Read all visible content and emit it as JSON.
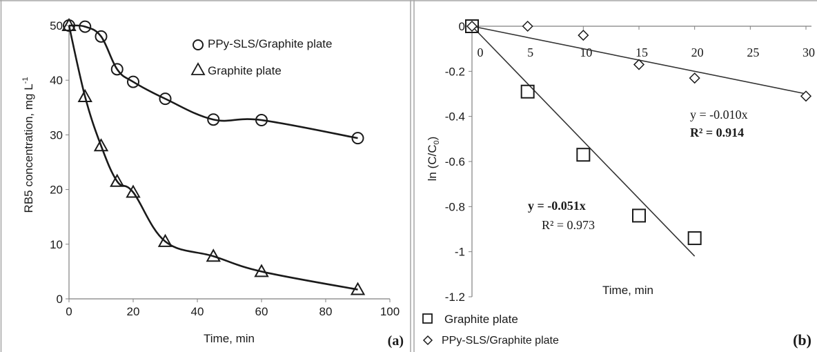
{
  "chart_data": [
    {
      "type": "line",
      "panel_label": "(a)",
      "xlabel": "Time, min",
      "ylabel": "RB5 concentration, mg L",
      "ylabel_superscript": "-1",
      "xlim": [
        0,
        100
      ],
      "ylim": [
        0,
        50
      ],
      "x_ticks": [
        "0",
        "20",
        "40",
        "60",
        "80",
        "100"
      ],
      "y_ticks": [
        "0",
        "10",
        "20",
        "30",
        "40",
        "50"
      ],
      "grid": false,
      "legend_position": "top-right",
      "series": [
        {
          "name": "PPy-SLS/Graphite plate",
          "marker": "circle",
          "x": [
            0,
            5,
            10,
            15,
            20,
            30,
            45,
            60,
            90
          ],
          "y": [
            50,
            49.8,
            48,
            42,
            39.7,
            36.6,
            32.8,
            32.7,
            29.4
          ]
        },
        {
          "name": "Graphite plate",
          "marker": "triangle",
          "x": [
            0,
            5,
            10,
            15,
            20,
            30,
            45,
            60,
            90
          ],
          "y": [
            50,
            37,
            28,
            21.5,
            19.5,
            10.5,
            7.8,
            5,
            1.7
          ]
        }
      ]
    },
    {
      "type": "scatter",
      "panel_label": "(b)",
      "xlabel": "Time, min",
      "ylabel": "ln (C/C",
      "ylabel_subscript": "0",
      "ylabel_end": ")",
      "xlim": [
        0,
        30
      ],
      "ylim": [
        -1.2,
        0
      ],
      "x_ticks": [
        "0",
        "5",
        "10",
        "15",
        "20",
        "25",
        "30"
      ],
      "y_ticks": [
        "0",
        "-0.2",
        "-0.4",
        "-0.6",
        "-0.8",
        "-1",
        "-1.2"
      ],
      "grid": false,
      "legend_position": "bottom-left",
      "series": [
        {
          "name": "Graphite plate",
          "marker": "square",
          "x": [
            0,
            5,
            10,
            15,
            20
          ],
          "y": [
            0,
            -0.29,
            -0.57,
            -0.84,
            -0.94
          ],
          "fit": {
            "slope": -0.051,
            "equation": "y = -0.051x",
            "r2": "R² = 0.973"
          }
        },
        {
          "name": "PPy-SLS/Graphite plate",
          "marker": "diamond",
          "x": [
            0,
            5,
            10,
            15,
            20,
            30
          ],
          "y": [
            0,
            0,
            -0.04,
            -0.17,
            -0.23,
            -0.31
          ],
          "fit": {
            "slope": -0.01,
            "equation": "y = -0.010x",
            "r2": "R² = 0.914"
          }
        }
      ]
    }
  ],
  "colors": {
    "ink": "#1a1a1a",
    "border": "#a6a6a6",
    "background": "#ffffff"
  }
}
